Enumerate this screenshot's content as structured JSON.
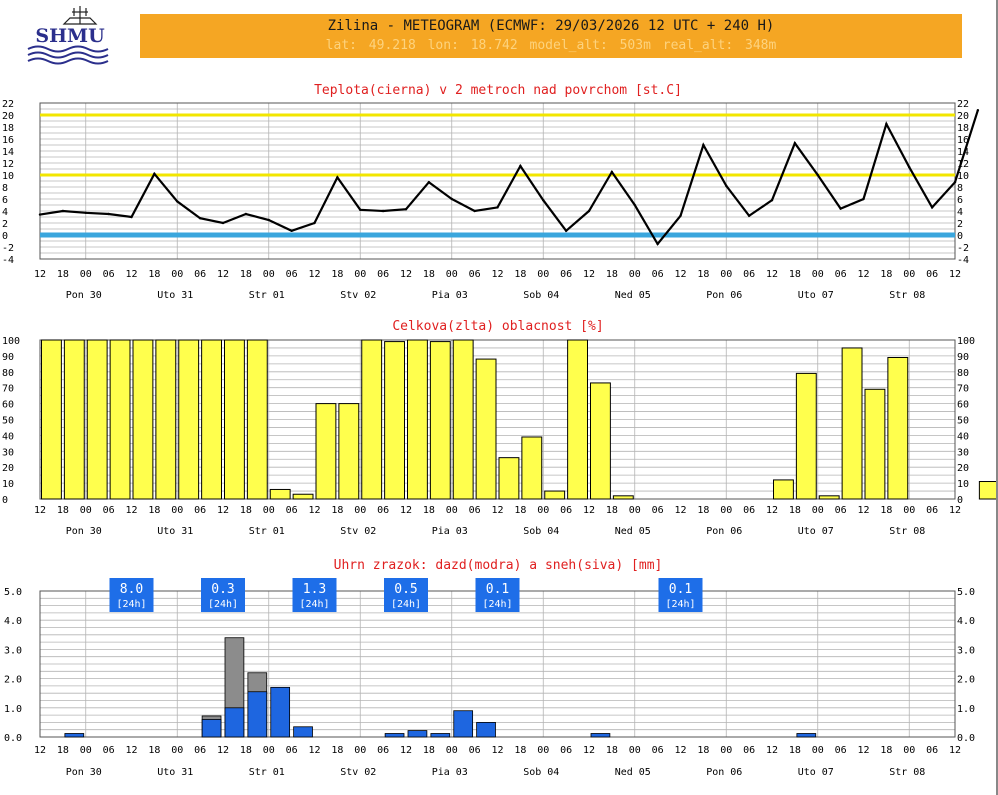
{
  "header": {
    "title": "Zilina - METEOGRAM (ECMWF: 29/03/2026 12 UTC + 240 H)",
    "coords": "lat: 49.218   lon: 18.742   model_alt: 503m   real_alt: 348m"
  },
  "logo": {
    "text": "SHMU"
  },
  "time_axis": {
    "hour_labels": [
      "12",
      "18",
      "00",
      "06",
      "12",
      "18",
      "00",
      "06",
      "12",
      "18",
      "00",
      "06",
      "12",
      "18",
      "00",
      "06",
      "12",
      "18",
      "00",
      "06",
      "12",
      "18",
      "00",
      "06",
      "12",
      "18",
      "00",
      "06",
      "12",
      "18",
      "00",
      "06",
      "12",
      "18",
      "00",
      "06",
      "12",
      "18",
      "00",
      "06",
      "12"
    ],
    "days": [
      "Pon 30",
      "Uto 31",
      "Str 01",
      "Stv 02",
      "Pia 03",
      "Sob 04",
      "Ned 05",
      "Pon 06",
      "Uto 07",
      "Str 08"
    ]
  },
  "chart_data": [
    {
      "type": "line",
      "title": "Teplota(cierna) v 2 metroch nad povrchom [st.C]",
      "ylim": [
        -4,
        22
      ],
      "yticks": [
        -4,
        -2,
        0,
        2,
        4,
        6,
        8,
        10,
        12,
        14,
        16,
        18,
        20,
        22
      ],
      "reference_lines": [
        {
          "value": 20,
          "color": "#f2e600"
        },
        {
          "value": 10,
          "color": "#f2e600"
        },
        {
          "value": 0,
          "color": "#3aa6dd"
        }
      ],
      "series": [
        {
          "color": "#000000",
          "values": [
            3.4,
            4.0,
            3.7,
            3.5,
            3.0,
            10.2,
            5.6,
            2.8,
            2.0,
            3.5,
            2.5,
            0.7,
            2.0,
            9.6,
            4.2,
            4.0,
            4.3,
            8.8,
            6.0,
            4.0,
            4.6,
            11.5,
            5.8,
            0.7,
            4.0,
            10.5,
            5.0,
            -1.5,
            3.2,
            15.0,
            8.2,
            3.2,
            5.8,
            15.3,
            10.0,
            4.4,
            6.0,
            18.5,
            11.3,
            4.6,
            8.8,
            20.8
          ]
        }
      ]
    },
    {
      "type": "bar",
      "title": "Celkova(zlta) oblacnost [%]",
      "ylim": [
        0,
        100
      ],
      "yticks": [
        0,
        10,
        20,
        30,
        40,
        50,
        60,
        70,
        80,
        90,
        100
      ],
      "bar_color": "#ffff4d",
      "values": [
        100,
        100,
        100,
        100,
        100,
        100,
        100,
        100,
        100,
        100,
        6,
        3,
        60,
        60,
        100,
        99,
        100,
        99,
        100,
        88,
        26,
        39,
        5,
        100,
        73,
        2,
        0,
        0,
        0,
        0,
        0,
        0,
        12,
        79,
        2,
        95,
        69,
        89,
        0,
        0,
        0,
        11
      ]
    },
    {
      "type": "bar",
      "title": "Uhrn zrazok: dazd(modra) a sneh(siva) [mm]",
      "ylim": [
        0,
        5.0
      ],
      "yticks": [
        "0.0",
        "1.0",
        "2.0",
        "3.0",
        "4.0",
        "5.0"
      ],
      "series": [
        {
          "color": "#1e66e0",
          "values": [
            0,
            0.12,
            0,
            0,
            0,
            0,
            0,
            0.6,
            1.0,
            1.55,
            1.7,
            0.35,
            0,
            0,
            0,
            0.12,
            0.22,
            0.12,
            0.9,
            0.5,
            0,
            0,
            0,
            0,
            0.12,
            0,
            0,
            0,
            0,
            0,
            0,
            0,
            0,
            0.12,
            0,
            0,
            0,
            0,
            0,
            0,
            0,
            0
          ]
        },
        {
          "color": "#8c8c8c",
          "values": [
            0,
            0,
            0,
            0,
            0,
            0,
            0,
            0.72,
            3.4,
            2.2,
            0,
            0,
            0,
            0,
            0,
            0,
            0,
            0,
            0,
            0,
            0,
            0,
            0,
            0,
            0,
            0,
            0,
            0,
            0,
            0,
            0,
            0,
            0,
            0,
            0,
            0,
            0,
            0,
            0,
            0,
            0,
            0
          ]
        }
      ],
      "daily_totals": [
        {
          "day": 1,
          "value": "8.0",
          "unit": "[24h]"
        },
        {
          "day": 2,
          "value": "0.3",
          "unit": "[24h]"
        },
        {
          "day": 3,
          "value": "1.3",
          "unit": "[24h]"
        },
        {
          "day": 4,
          "value": "0.5",
          "unit": "[24h]"
        },
        {
          "day": 5,
          "value": "0.1",
          "unit": "[24h]"
        },
        {
          "day": 7,
          "value": "0.1",
          "unit": "[24h]"
        }
      ]
    }
  ]
}
